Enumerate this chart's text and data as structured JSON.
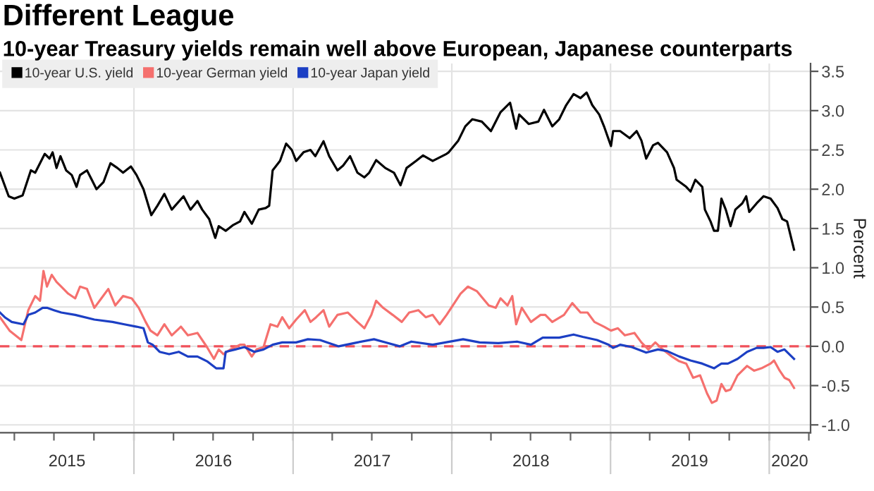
{
  "chart_data": {
    "type": "line",
    "title": "Different League",
    "subtitle": "10-year Treasury yields remain well above European, Japanese counterparts",
    "ylabel": "Percent",
    "series": [
      {
        "name": "10-year U.S. yield",
        "color": "#000000",
        "x": [
          "2015-02-27",
          "2015-03-19",
          "2015-04-01",
          "2015-04-20",
          "2015-05-09",
          "2015-05-19",
          "2015-06-10",
          "2015-06-21",
          "2015-06-28",
          "2015-07-07",
          "2015-07-16",
          "2015-07-29",
          "2015-08-11",
          "2015-08-22",
          "2015-08-30",
          "2015-09-15",
          "2015-09-26",
          "2015-10-07",
          "2015-10-23",
          "2015-11-08",
          "2015-11-24",
          "2015-12-07",
          "2015-12-25",
          "2016-01-07",
          "2016-01-23",
          "2016-02-10",
          "2016-02-24",
          "2016-03-11",
          "2016-03-28",
          "2016-04-24",
          "2016-05-10",
          "2016-05-26",
          "2016-06-06",
          "2016-06-22",
          "2016-07-06",
          "2016-07-14",
          "2016-07-30",
          "2016-08-15",
          "2016-09-01",
          "2016-09-11",
          "2016-09-28",
          "2016-10-14",
          "2016-10-30",
          "2016-11-07",
          "2016-11-15",
          "2016-12-02",
          "2016-12-16",
          "2016-12-29",
          "2017-01-08",
          "2017-01-25",
          "2017-02-10",
          "2017-02-21",
          "2017-03-12",
          "2017-03-25",
          "2017-04-13",
          "2017-04-26",
          "2017-05-12",
          "2017-05-29",
          "2017-06-14",
          "2017-06-25",
          "2017-07-11",
          "2017-08-01",
          "2017-08-21",
          "2017-09-05",
          "2017-09-19",
          "2017-10-11",
          "2017-10-27",
          "2017-11-18",
          "2017-12-20",
          "2017-12-25",
          "2018-01-16",
          "2018-02-01",
          "2018-02-17",
          "2018-03-11",
          "2018-04-01",
          "2018-04-23",
          "2018-05-15",
          "2018-05-29",
          "2018-06-05",
          "2018-06-27",
          "2018-07-19",
          "2018-08-01",
          "2018-08-20",
          "2018-09-05",
          "2018-09-21",
          "2018-10-08",
          "2018-10-24",
          "2018-11-07",
          "2018-11-20",
          "2018-12-06",
          "2018-12-17",
          "2019-01-02",
          "2019-01-07",
          "2019-01-23",
          "2019-02-14",
          "2019-03-02",
          "2019-03-13",
          "2019-03-24",
          "2019-04-09",
          "2019-04-20",
          "2019-05-11",
          "2019-05-27",
          "2019-06-02",
          "2019-06-24",
          "2019-07-04",
          "2019-07-15",
          "2019-07-31",
          "2019-08-06",
          "2019-08-19",
          "2019-08-27",
          "2019-09-05",
          "2019-09-13",
          "2019-09-23",
          "2019-10-04",
          "2019-10-15",
          "2019-10-31",
          "2019-11-09",
          "2019-11-16",
          "2019-12-03",
          "2019-12-19",
          "2020-01-04",
          "2020-01-20",
          "2020-01-31",
          "2020-02-11",
          "2020-02-27"
        ],
        "values": [
          2.21,
          1.91,
          1.88,
          1.92,
          2.24,
          2.21,
          2.45,
          2.39,
          2.47,
          2.27,
          2.42,
          2.24,
          2.18,
          2.03,
          2.18,
          2.24,
          2.12,
          2.0,
          2.09,
          2.33,
          2.27,
          2.21,
          2.29,
          2.18,
          2.0,
          1.67,
          1.79,
          1.94,
          1.74,
          1.91,
          1.74,
          1.85,
          1.74,
          1.62,
          1.38,
          1.53,
          1.47,
          1.54,
          1.59,
          1.71,
          1.56,
          1.74,
          1.76,
          1.79,
          2.24,
          2.36,
          2.58,
          2.5,
          2.36,
          2.47,
          2.5,
          2.42,
          2.61,
          2.42,
          2.24,
          2.3,
          2.42,
          2.21,
          2.15,
          2.21,
          2.37,
          2.27,
          2.21,
          2.05,
          2.27,
          2.36,
          2.43,
          2.36,
          2.45,
          2.47,
          2.62,
          2.8,
          2.89,
          2.86,
          2.74,
          2.98,
          3.1,
          2.77,
          2.95,
          2.83,
          2.86,
          3.01,
          2.8,
          2.89,
          3.07,
          3.21,
          3.16,
          3.23,
          3.07,
          2.95,
          2.8,
          2.55,
          2.74,
          2.74,
          2.65,
          2.74,
          2.62,
          2.39,
          2.56,
          2.59,
          2.47,
          2.27,
          2.12,
          2.03,
          1.97,
          2.12,
          2.03,
          1.74,
          1.59,
          1.47,
          1.47,
          1.88,
          1.74,
          1.53,
          1.74,
          1.82,
          1.91,
          1.71,
          1.82,
          1.91,
          1.88,
          1.76,
          1.62,
          1.59,
          1.23
        ]
      },
      {
        "name": "10-year German yield",
        "color": "#f5706e",
        "x": [
          "2015-02-27",
          "2015-03-21",
          "2015-04-17",
          "2015-05-03",
          "2015-05-19",
          "2015-05-30",
          "2015-06-07",
          "2015-06-15",
          "2015-06-26",
          "2015-07-07",
          "2015-07-18",
          "2015-08-03",
          "2015-08-19",
          "2015-08-30",
          "2015-09-15",
          "2015-10-02",
          "2015-10-18",
          "2015-11-03",
          "2015-11-19",
          "2015-12-07",
          "2015-12-27",
          "2016-01-12",
          "2016-01-28",
          "2016-02-08",
          "2016-02-24",
          "2016-03-11",
          "2016-03-28",
          "2016-04-18",
          "2016-05-04",
          "2016-05-26",
          "2016-06-17",
          "2016-07-03",
          "2016-07-14",
          "2016-07-25",
          "2016-08-10",
          "2016-09-01",
          "2016-09-11",
          "2016-09-28",
          "2016-10-09",
          "2016-10-25",
          "2016-11-10",
          "2016-11-26",
          "2016-12-07",
          "2016-12-23",
          "2017-01-08",
          "2017-01-28",
          "2017-02-10",
          "2017-02-23",
          "2017-03-12",
          "2017-03-25",
          "2017-04-13",
          "2017-05-07",
          "2017-05-29",
          "2017-06-14",
          "2017-06-30",
          "2017-07-11",
          "2017-07-27",
          "2017-08-18",
          "2017-09-08",
          "2017-09-25",
          "2017-10-16",
          "2017-11-02",
          "2017-11-18",
          "2017-12-04",
          "2017-12-20",
          "2018-01-21",
          "2018-02-07",
          "2018-02-28",
          "2018-03-27",
          "2018-04-12",
          "2018-04-23",
          "2018-05-09",
          "2018-05-20",
          "2018-05-29",
          "2018-06-11",
          "2018-07-02",
          "2018-07-24",
          "2018-08-04",
          "2018-08-20",
          "2018-09-16",
          "2018-10-05",
          "2018-10-24",
          "2018-11-09",
          "2018-11-25",
          "2018-12-17",
          "2019-01-02",
          "2019-01-18",
          "2019-02-03",
          "2019-02-25",
          "2019-03-13",
          "2019-03-29",
          "2019-04-14",
          "2019-05-01",
          "2019-05-22",
          "2019-06-08",
          "2019-06-24",
          "2019-07-10",
          "2019-07-26",
          "2019-08-11",
          "2019-08-22",
          "2019-09-02",
          "2019-09-13",
          "2019-09-23",
          "2019-10-04",
          "2019-10-20",
          "2019-10-31",
          "2019-11-11",
          "2019-11-27",
          "2019-12-14",
          "2020-01-04",
          "2020-01-12",
          "2020-01-25",
          "2020-02-05",
          "2020-02-16",
          "2020-02-27"
        ],
        "values": [
          0.37,
          0.2,
          0.08,
          0.46,
          0.64,
          0.58,
          0.96,
          0.76,
          0.91,
          0.82,
          0.76,
          0.67,
          0.61,
          0.76,
          0.73,
          0.49,
          0.61,
          0.73,
          0.52,
          0.64,
          0.61,
          0.49,
          0.31,
          0.2,
          0.14,
          0.28,
          0.14,
          0.25,
          0.14,
          0.17,
          -0.01,
          -0.16,
          -0.04,
          -0.1,
          -0.04,
          0.02,
          0.02,
          -0.13,
          -0.04,
          -0.01,
          0.28,
          0.25,
          0.37,
          0.23,
          0.34,
          0.46,
          0.31,
          0.37,
          0.46,
          0.25,
          0.4,
          0.43,
          0.31,
          0.23,
          0.4,
          0.58,
          0.49,
          0.4,
          0.31,
          0.43,
          0.46,
          0.37,
          0.4,
          0.28,
          0.4,
          0.67,
          0.76,
          0.7,
          0.52,
          0.49,
          0.61,
          0.52,
          0.64,
          0.28,
          0.49,
          0.31,
          0.4,
          0.4,
          0.31,
          0.4,
          0.55,
          0.43,
          0.43,
          0.31,
          0.25,
          0.2,
          0.23,
          0.14,
          0.17,
          0.05,
          -0.04,
          0.05,
          -0.04,
          -0.13,
          -0.19,
          -0.22,
          -0.4,
          -0.37,
          -0.6,
          -0.72,
          -0.69,
          -0.48,
          -0.57,
          -0.55,
          -0.37,
          -0.31,
          -0.25,
          -0.31,
          -0.28,
          -0.22,
          -0.18,
          -0.31,
          -0.4,
          -0.43,
          -0.53
        ]
      },
      {
        "name": "10-year Japan yield",
        "color": "#1c3fc4",
        "x": [
          "2015-02-27",
          "2015-03-10",
          "2015-03-26",
          "2015-04-22",
          "2015-05-03",
          "2015-05-19",
          "2015-06-05",
          "2015-06-15",
          "2015-07-01",
          "2015-07-18",
          "2015-08-19",
          "2015-10-02",
          "2015-11-13",
          "2015-12-10",
          "2016-01-07",
          "2016-01-23",
          "2016-02-02",
          "2016-02-13",
          "2016-02-29",
          "2016-03-22",
          "2016-04-13",
          "2016-05-04",
          "2016-05-26",
          "2016-06-17",
          "2016-07-08",
          "2016-07-25",
          "2016-07-30",
          "2016-08-21",
          "2016-09-11",
          "2016-10-04",
          "2016-10-25",
          "2016-11-15",
          "2016-12-07",
          "2017-01-08",
          "2017-02-04",
          "2017-03-04",
          "2017-04-16",
          "2017-05-29",
          "2017-07-06",
          "2017-08-01",
          "2017-09-03",
          "2017-09-30",
          "2017-11-18",
          "2018-01-27",
          "2018-03-06",
          "2018-04-18",
          "2018-05-31",
          "2018-07-02",
          "2018-07-29",
          "2018-09-05",
          "2018-10-08",
          "2018-10-29",
          "2018-12-01",
          "2018-12-28",
          "2019-01-07",
          "2019-01-23",
          "2019-02-19",
          "2019-03-24",
          "2019-04-20",
          "2019-05-11",
          "2019-06-08",
          "2019-07-04",
          "2019-07-31",
          "2019-08-27",
          "2019-09-13",
          "2019-09-28",
          "2019-10-20",
          "2019-11-11",
          "2019-12-03",
          "2019-12-19",
          "2020-01-04",
          "2020-01-20",
          "2020-02-05",
          "2020-02-27"
        ],
        "values": [
          0.43,
          0.37,
          0.31,
          0.28,
          0.4,
          0.43,
          0.49,
          0.49,
          0.46,
          0.43,
          0.4,
          0.34,
          0.31,
          0.28,
          0.25,
          0.23,
          0.05,
          0.02,
          -0.07,
          -0.1,
          -0.07,
          -0.13,
          -0.13,
          -0.19,
          -0.28,
          -0.28,
          -0.07,
          -0.04,
          -0.01,
          -0.07,
          -0.04,
          0.02,
          0.05,
          0.05,
          0.09,
          0.08,
          0.0,
          0.05,
          0.09,
          0.05,
          0.0,
          0.06,
          0.02,
          0.09,
          0.05,
          0.04,
          0.06,
          0.02,
          0.11,
          0.11,
          0.15,
          0.12,
          0.08,
          0.02,
          -0.02,
          0.02,
          -0.01,
          -0.08,
          -0.04,
          -0.06,
          -0.13,
          -0.18,
          -0.22,
          -0.28,
          -0.22,
          -0.22,
          -0.16,
          -0.07,
          -0.02,
          -0.02,
          -0.01,
          -0.07,
          -0.04,
          -0.16
        ]
      }
    ],
    "xlim": [
      "2015-02-27",
      "2020-04-05"
    ],
    "xticks": [
      {
        "value": "2015-04-01",
        "label": null
      },
      {
        "value": "2015-07-01",
        "label": null
      },
      {
        "value": "2015-07-31",
        "label": "2015"
      },
      {
        "value": "2015-10-01",
        "label": null
      },
      {
        "value": "2016-01-01",
        "label": null
      },
      {
        "value": "2016-04-01",
        "label": null
      },
      {
        "value": "2016-07-01",
        "label": null
      },
      {
        "value": "2016-07-02",
        "label": "2016"
      },
      {
        "value": "2016-10-01",
        "label": null
      },
      {
        "value": "2017-01-01",
        "label": null
      },
      {
        "value": "2017-04-01",
        "label": null
      },
      {
        "value": "2017-07-01",
        "label": null
      },
      {
        "value": "2017-07-02",
        "label": "2017"
      },
      {
        "value": "2017-10-01",
        "label": null
      },
      {
        "value": "2018-01-01",
        "label": null
      },
      {
        "value": "2018-04-01",
        "label": null
      },
      {
        "value": "2018-07-01",
        "label": null
      },
      {
        "value": "2018-07-02",
        "label": "2018"
      },
      {
        "value": "2018-10-01",
        "label": null
      },
      {
        "value": "2019-01-01",
        "label": null
      },
      {
        "value": "2019-04-01",
        "label": null
      },
      {
        "value": "2019-07-01",
        "label": null
      },
      {
        "value": "2019-07-02",
        "label": "2019"
      },
      {
        "value": "2019-10-01",
        "label": null
      },
      {
        "value": "2020-01-01",
        "label": null
      },
      {
        "value": "2020-02-17",
        "label": "2020"
      },
      {
        "value": "2020-04-01",
        "label": null
      }
    ],
    "ylim": [
      -1.1,
      3.6
    ],
    "yticks": [
      {
        "value": -1,
        "label": "-1.0"
      },
      {
        "value": -0.5,
        "label": "-0.5"
      },
      {
        "value": 0,
        "label": "0.0"
      },
      {
        "value": 0.5,
        "label": "0.5"
      },
      {
        "value": 1,
        "label": "1.0"
      },
      {
        "value": 1.5,
        "label": "1.5"
      },
      {
        "value": 2,
        "label": "2.0"
      },
      {
        "value": 2.5,
        "label": "2.5"
      },
      {
        "value": 3,
        "label": "3.0"
      },
      {
        "value": 3.5,
        "label": "3.5"
      }
    ],
    "ref_lines": [
      {
        "axis": "y",
        "value": 0,
        "color": "#f0505a",
        "line_style": "dashed"
      }
    ],
    "grid": true,
    "legend": "top left"
  }
}
